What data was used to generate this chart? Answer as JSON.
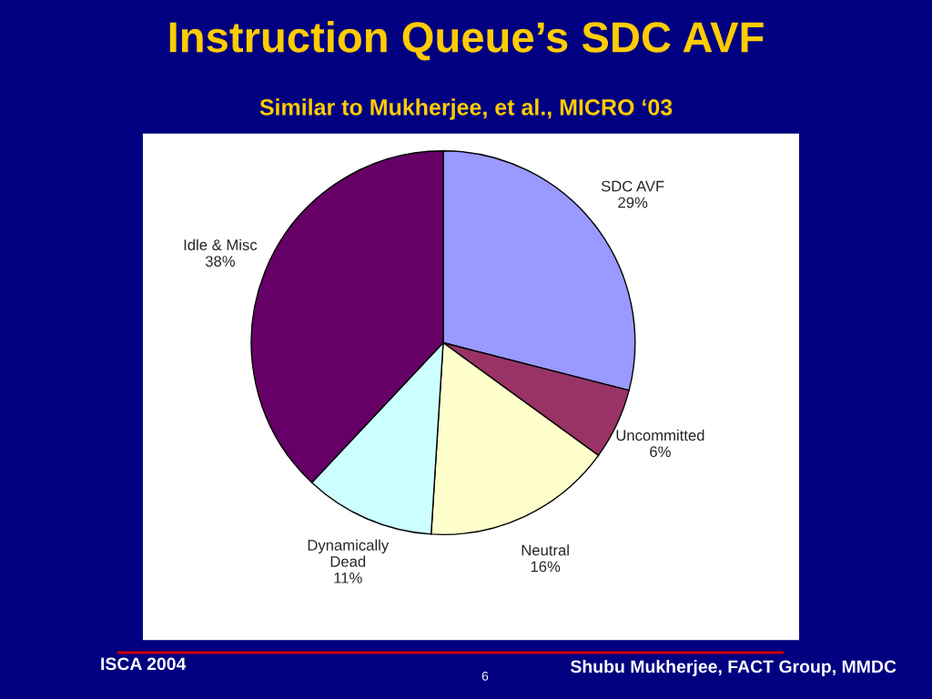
{
  "chart_data": {
    "type": "pie",
    "title": "Instruction Queue’s SDC AVF",
    "subtitle": "Similar to Mukherjee, et al., MICRO ‘03",
    "categories": [
      "SDC AVF",
      "Uncommitted",
      "Neutral",
      "Dynamically\nDead",
      "Idle & Misc"
    ],
    "values": [
      29,
      6,
      16,
      11,
      38
    ],
    "value_labels": [
      "29%",
      "6%",
      "16%",
      "11%",
      "38%"
    ],
    "colors": [
      "#9999ff",
      "#993366",
      "#ffffcc",
      "#ccffff",
      "#660066"
    ],
    "legend": false,
    "annotations": [
      "ISCA 2004",
      "6",
      "Shubu Mukherjee, FACT Group, MMDC"
    ]
  }
}
